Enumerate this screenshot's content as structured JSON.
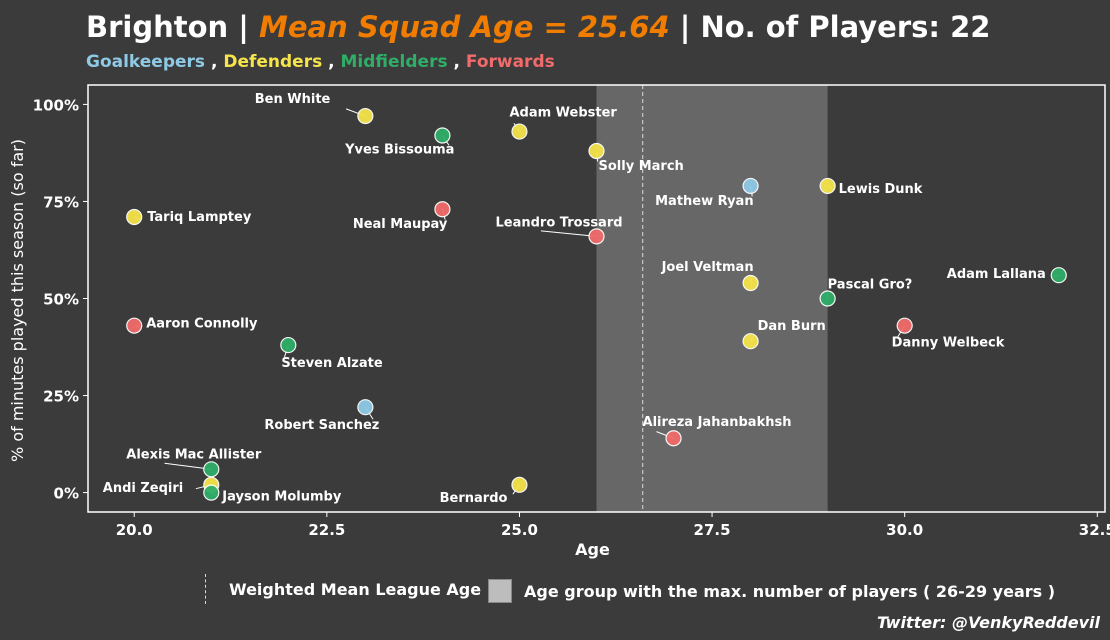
{
  "header": {
    "team": "Brighton",
    "separator": " | ",
    "mean_text": "Mean Squad Age = 25.64",
    "players_text": "No. of Players: 22",
    "comma": " , "
  },
  "positions": [
    {
      "name": "Goalkeepers",
      "color": "#8ecae6"
    },
    {
      "name": "Defenders",
      "color": "#f5e44a"
    },
    {
      "name": "Midfielders",
      "color": "#2fae68"
    },
    {
      "name": "Forwards",
      "color": "#f26b6b"
    }
  ],
  "legend": {
    "line_label": "Weighted Mean League Age",
    "box_label": "Age group with the max. number of players ( 26-29 years )"
  },
  "credit": "Twitter: @VenkyReddevil",
  "chart_data": {
    "type": "scatter",
    "xlabel": "Age",
    "ylabel": "% of minutes played this season (so far)",
    "xlim": [
      19.4,
      32.6
    ],
    "ylim": [
      -5,
      105
    ],
    "xticks": [
      20.0,
      22.5,
      25.0,
      27.5,
      30.0,
      32.5
    ],
    "xtick_labels": [
      "20.0",
      "22.5",
      "25.0",
      "27.5",
      "30.0",
      "32.5"
    ],
    "yticks": [
      0,
      25,
      50,
      75,
      100
    ],
    "ytick_labels": [
      "0%",
      "25%",
      "50%",
      "75%",
      "100%"
    ],
    "grid": false,
    "shaded_band": {
      "from": 26,
      "to": 29
    },
    "mean_line_x": 26.6,
    "points": [
      {
        "name": "Ben White",
        "age": 23,
        "pct": 97,
        "pos": 1,
        "lx": -35,
        "ly": -13,
        "anchor": "end"
      },
      {
        "name": "Yves Bissouma",
        "age": 24,
        "pct": 92,
        "pos": 2,
        "lx": 12,
        "ly": 18,
        "anchor": "end"
      },
      {
        "name": "Adam Webster",
        "age": 25,
        "pct": 93,
        "pos": 1,
        "lx": -10,
        "ly": -15,
        "anchor": "start"
      },
      {
        "name": "Solly March",
        "age": 26,
        "pct": 88,
        "pos": 1,
        "lx": 2,
        "ly": 19,
        "anchor": "start"
      },
      {
        "name": "Tariq Lamptey",
        "age": 20,
        "pct": 71,
        "pos": 1,
        "lx": 13,
        "ly": 4,
        "anchor": "start"
      },
      {
        "name": "Neal Maupay",
        "age": 24,
        "pct": 73,
        "pos": 3,
        "lx": 5,
        "ly": 19,
        "anchor": "end"
      },
      {
        "name": "Leandro Trossard",
        "age": 26,
        "pct": 66,
        "pos": 3,
        "lx": -101,
        "ly": -10,
        "anchor": "start"
      },
      {
        "name": "Mathew Ryan",
        "age": 28,
        "pct": 79,
        "pos": 0,
        "lx": 3,
        "ly": 19,
        "anchor": "end"
      },
      {
        "name": "Lewis Dunk",
        "age": 29,
        "pct": 79,
        "pos": 1,
        "lx": 11,
        "ly": 7,
        "anchor": "start"
      },
      {
        "name": "Joel Veltman",
        "age": 28,
        "pct": 54,
        "pos": 1,
        "lx": 3,
        "ly": -12,
        "anchor": "end"
      },
      {
        "name": "Pascal Gro?",
        "age": 29,
        "pct": 50,
        "pos": 2,
        "lx": 0,
        "ly": -10,
        "anchor": "start"
      },
      {
        "name": "Adam Lallana",
        "age": 32,
        "pct": 56,
        "pos": 2,
        "lx": -13,
        "ly": 3,
        "anchor": "end"
      },
      {
        "name": "Aaron Connolly",
        "age": 20,
        "pct": 43,
        "pos": 3,
        "lx": 12,
        "ly": 2,
        "anchor": "start"
      },
      {
        "name": "Dan Burn",
        "age": 28,
        "pct": 39,
        "pos": 1,
        "lx": 7,
        "ly": -11,
        "anchor": "start"
      },
      {
        "name": "Danny Welbeck",
        "age": 30,
        "pct": 43,
        "pos": 3,
        "lx": -13,
        "ly": 21,
        "anchor": "start"
      },
      {
        "name": "Steven Alzate",
        "age": 22,
        "pct": 38,
        "pos": 2,
        "lx": -7,
        "ly": 22,
        "anchor": "start"
      },
      {
        "name": "Robert Sanchez",
        "age": 23,
        "pct": 22,
        "pos": 0,
        "lx": 14,
        "ly": 22,
        "anchor": "end"
      },
      {
        "name": "Alireza Jahanbakhsh",
        "age": 27,
        "pct": 14,
        "pos": 3,
        "lx": -31,
        "ly": -12,
        "anchor": "start"
      },
      {
        "name": "Alexis Mac Allister",
        "age": 21,
        "pct": 6,
        "pos": 2,
        "lx": -85,
        "ly": -11,
        "anchor": "start"
      },
      {
        "name": "Andi Zeqiri",
        "age": 21,
        "pct": 2,
        "pos": 1,
        "lx": -28,
        "ly": 7,
        "anchor": "end"
      },
      {
        "name": "Jayson Molumby",
        "age": 21,
        "pct": 0,
        "pos": 2,
        "lx": 11,
        "ly": 8,
        "anchor": "start"
      },
      {
        "name": "Bernardo",
        "age": 25,
        "pct": 2,
        "pos": 1,
        "lx": -12,
        "ly": 17,
        "anchor": "end"
      }
    ]
  }
}
